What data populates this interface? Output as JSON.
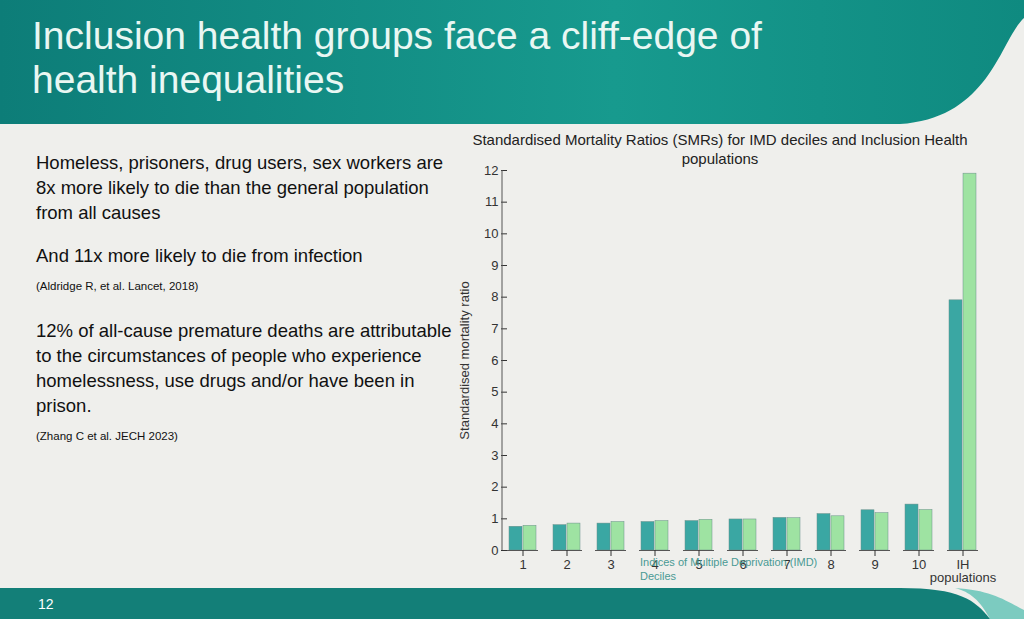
{
  "slide": {
    "title": "Inclusion health groups face a cliff-edge of health inequalities",
    "blocks": [
      {
        "statements": [
          "Homeless, prisoners, drug users, sex workers are 8x more likely to die than the general population from all causes",
          "And 11x more likely to die from infection"
        ],
        "citation": "(Aldridge R, et al. Lancet, 2018)"
      },
      {
        "statements": [
          "12% of all-cause premature deaths are attributable to the circumstances of people who experience homelessness, use drugs and/or have been in prison."
        ],
        "citation": "(Zhang C et al. JECH 2023)"
      }
    ],
    "page": "12"
  },
  "chart_data": {
    "type": "bar",
    "title": "Standardised Mortality Ratios (SMRs) for IMD deciles and Inclusion Health populations",
    "x_label": "Indices of Multiple Deprivation (IMD) Deciles",
    "y_label": "Standardised mortality ratio",
    "categories": [
      "1",
      "2",
      "3",
      "4",
      "5",
      "6",
      "7",
      "8",
      "9",
      "10",
      "IH populations"
    ],
    "series": [
      {
        "color": "#3aa7a3",
        "values": [
          0.75,
          0.8,
          0.85,
          0.9,
          0.93,
          0.98,
          1.03,
          1.15,
          1.27,
          1.45,
          7.9
        ]
      },
      {
        "color": "#9ee3a2",
        "values": [
          0.78,
          0.85,
          0.9,
          0.93,
          0.97,
          0.98,
          1.02,
          1.08,
          1.18,
          1.28,
          11.9
        ]
      }
    ],
    "ylim": [
      0,
      12
    ],
    "yticks": [
      0,
      1,
      2,
      3,
      4,
      5,
      6,
      7,
      8,
      9,
      10,
      11,
      12
    ],
    "grid": false
  }
}
